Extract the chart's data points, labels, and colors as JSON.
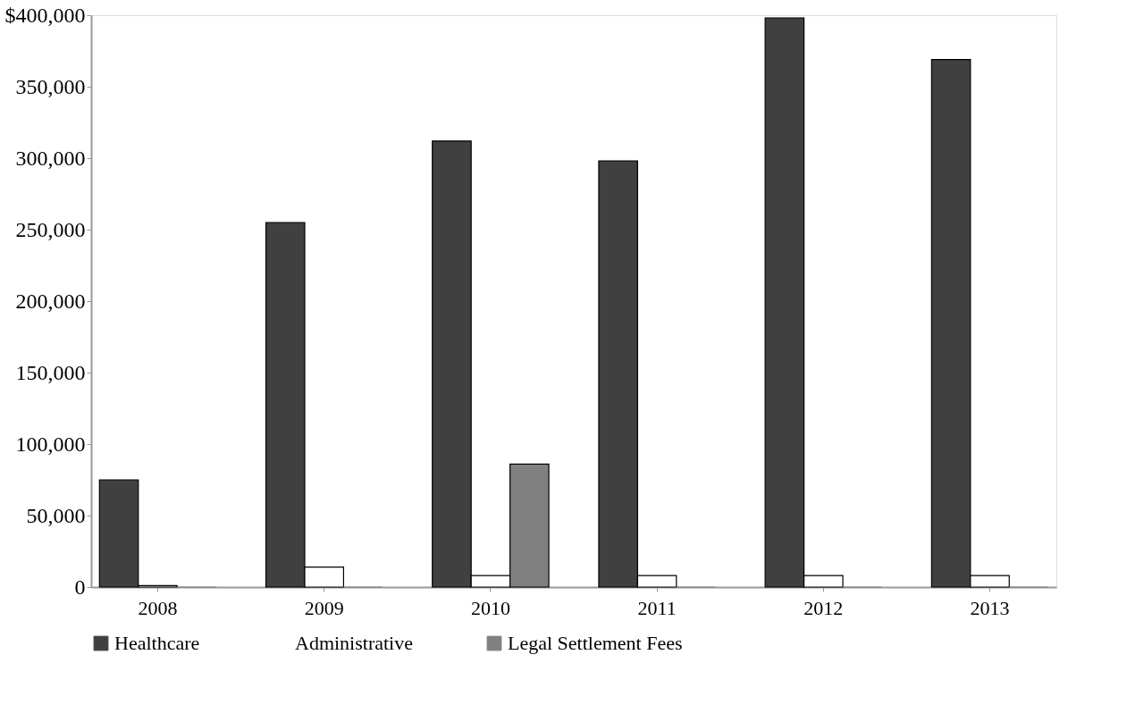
{
  "chart_data": {
    "type": "bar",
    "categories": [
      "2008",
      "2009",
      "2010",
      "2011",
      "2012",
      "2013"
    ],
    "series": [
      {
        "name": "Healthcare",
        "color": "#404040",
        "values": [
          75000,
          255000,
          312000,
          298000,
          398000,
          369000
        ]
      },
      {
        "name": "Administrative",
        "color": "#ffffff",
        "values": [
          1000,
          14000,
          8000,
          8000,
          8000,
          8000
        ]
      },
      {
        "name": "Legal Settlement Fees",
        "color": "#808080",
        "values": [
          0,
          0,
          86000,
          0,
          0,
          0
        ]
      }
    ],
    "ylim": [
      0,
      400000
    ],
    "yticks": [
      0,
      {
        "value": 50000,
        "label": "50,000"
      },
      {
        "value": 100000,
        "label": "100,000"
      },
      {
        "value": 150000,
        "label": "150,000"
      },
      {
        "value": 200000,
        "label": "200,000"
      },
      {
        "value": 250000,
        "label": "250,000"
      },
      {
        "value": 300000,
        "label": "300,000"
      },
      {
        "value": 350000,
        "label": "350,000"
      },
      {
        "value": 400000,
        "label": "$400,000"
      }
    ],
    "grid": false,
    "legend": "bottom"
  }
}
